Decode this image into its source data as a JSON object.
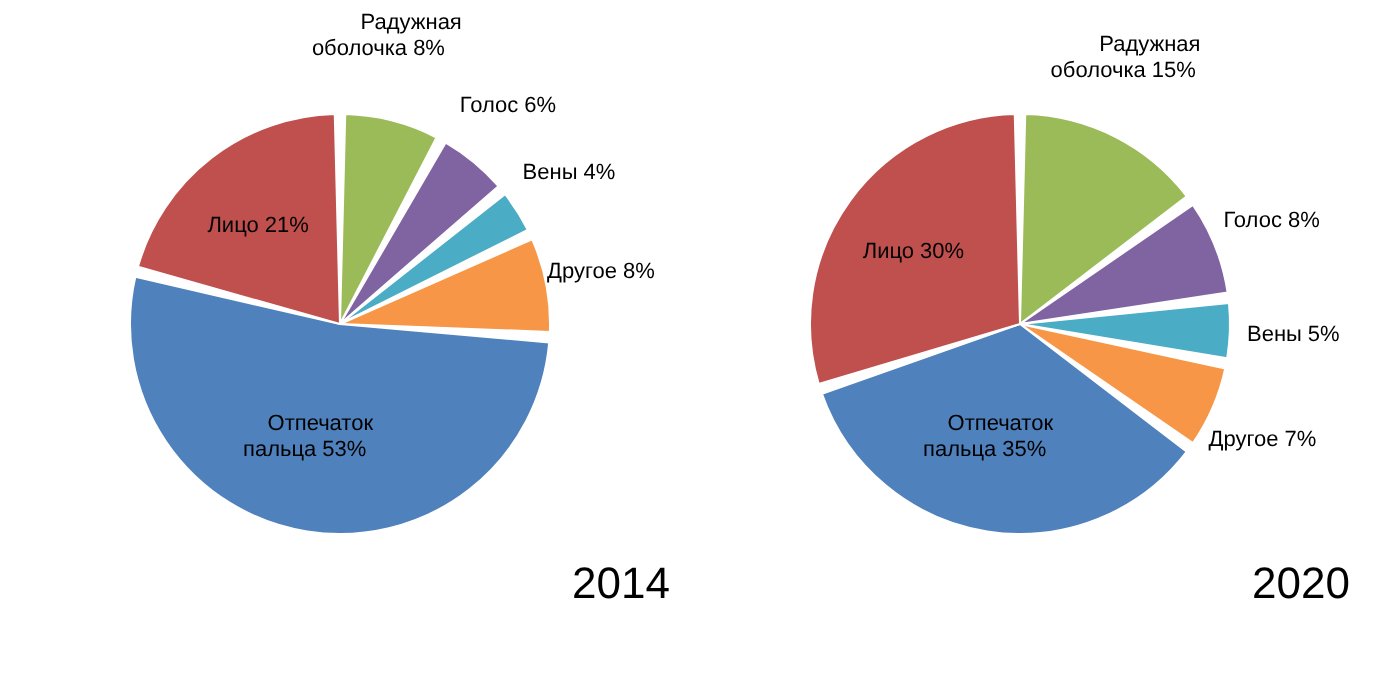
{
  "chart_data": [
    {
      "type": "pie",
      "title": "2014",
      "categories": [
        "Радужная оболочка",
        "Голос",
        "Вены",
        "Другое",
        "Отпечаток пальца",
        "Лицо"
      ],
      "values": [
        8,
        6,
        4,
        8,
        53,
        21
      ],
      "value_labels": [
        "8%",
        "6%",
        "4%",
        "8%",
        "53%",
        "21%"
      ],
      "colors": [
        "#9bbb59",
        "#8064a2",
        "#4bacc6",
        "#f79646",
        "#4f81bd",
        "#c0504d"
      ],
      "legend": false
    },
    {
      "type": "pie",
      "title": "2020",
      "categories": [
        "Радужная оболочка",
        "Голос",
        "Вены",
        "Другое",
        "Отпечаток пальца",
        "Лицо"
      ],
      "values": [
        15,
        8,
        5,
        7,
        35,
        30
      ],
      "value_labels": [
        "15%",
        "8%",
        "5%",
        "7%",
        "35%",
        "30%"
      ],
      "colors": [
        "#9bbb59",
        "#8064a2",
        "#4bacc6",
        "#f79646",
        "#4f81bd",
        "#c0504d"
      ],
      "legend": false
    }
  ]
}
